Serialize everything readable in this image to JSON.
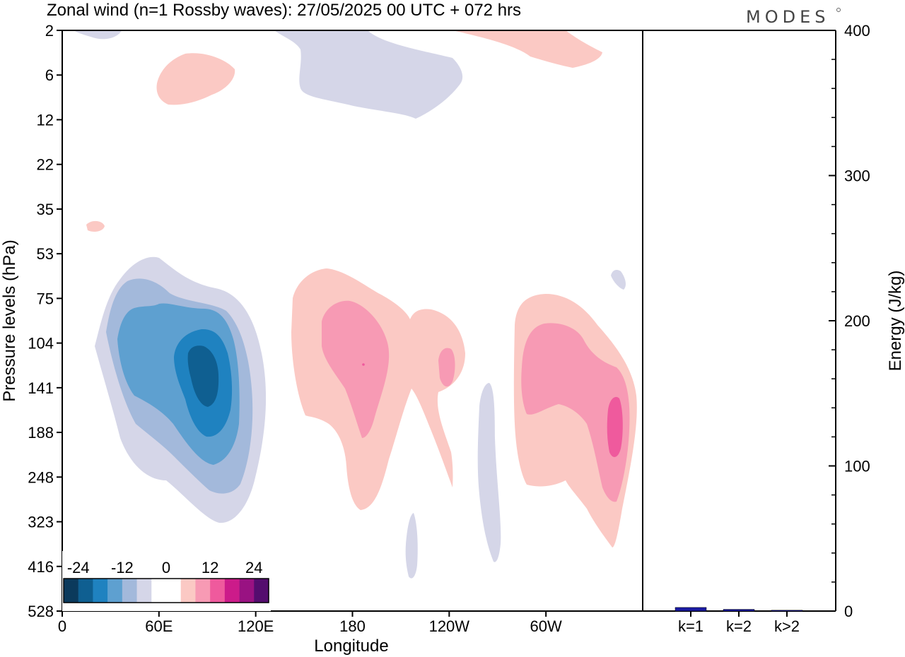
{
  "chart_data": {
    "type": "heatmap",
    "title": "Zonal wind (n=1 Rossby waves):  27/05/2025  00 UTC  + 072 hrs",
    "logo": "MODES",
    "xlabel": "Longitude",
    "ylabel": "Pressure levels (hPa)",
    "y2label": "Energy (J/kg)",
    "x_ticks": [
      "0",
      "60E",
      "120E",
      "180",
      "120W",
      "60W"
    ],
    "y_ticks": [
      "2",
      "6",
      "12",
      "22",
      "35",
      "53",
      "75",
      "104",
      "141",
      "188",
      "248",
      "323",
      "416",
      "528"
    ],
    "y2_ticks": [
      "0",
      "100",
      "200",
      "300",
      "400"
    ],
    "y2_range": [
      0,
      400
    ],
    "colorbar": {
      "tick_labels": [
        "-24",
        "-12",
        "0",
        "12",
        "24"
      ],
      "colors": [
        "#0b3a5c",
        "#0f5f91",
        "#1f82c0",
        "#5ea0d0",
        "#a3b9db",
        "#d5d6e8",
        "#ffffff",
        "#ffffff",
        "#fbc9c4",
        "#f79ab4",
        "#ef5a9d",
        "#cc1b8a",
        "#991282",
        "#540d6e"
      ]
    },
    "energy_bars": {
      "categories": [
        "k=1",
        "k=2",
        "k>2"
      ],
      "values": [
        2.5,
        1.2,
        0.6
      ],
      "color": "#1a1aa0"
    }
  }
}
